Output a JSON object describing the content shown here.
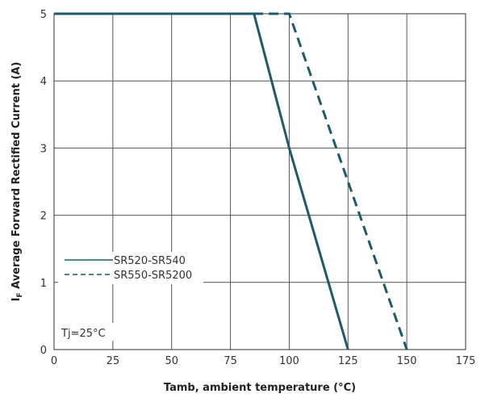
{
  "chart_data": {
    "type": "line",
    "xlabel": "Tamb, ambient temperature (°C)",
    "ylabel_main": "I",
    "ylabel_sub": "F",
    "ylabel_rest": " Average Forward Rectified Current (A)",
    "xlim": [
      0,
      175
    ],
    "ylim": [
      0,
      5
    ],
    "xticks": [
      0,
      25,
      50,
      75,
      100,
      125,
      150,
      175
    ],
    "yticks": [
      0,
      1,
      2,
      3,
      4,
      5
    ],
    "grid": true,
    "legend_position": "middle-left",
    "annotation": "Tj=25°C",
    "series": [
      {
        "name": "SR520-SR540",
        "style": "solid",
        "color": "#1d5a6b",
        "x": [
          0,
          85,
          100,
          125
        ],
        "y": [
          5,
          5,
          3,
          0
        ]
      },
      {
        "name": "SR550-SR5200",
        "style": "dashed",
        "color": "#1d5a6b",
        "x": [
          0,
          100,
          125,
          150
        ],
        "y": [
          5,
          5,
          2.5,
          0
        ]
      }
    ]
  }
}
